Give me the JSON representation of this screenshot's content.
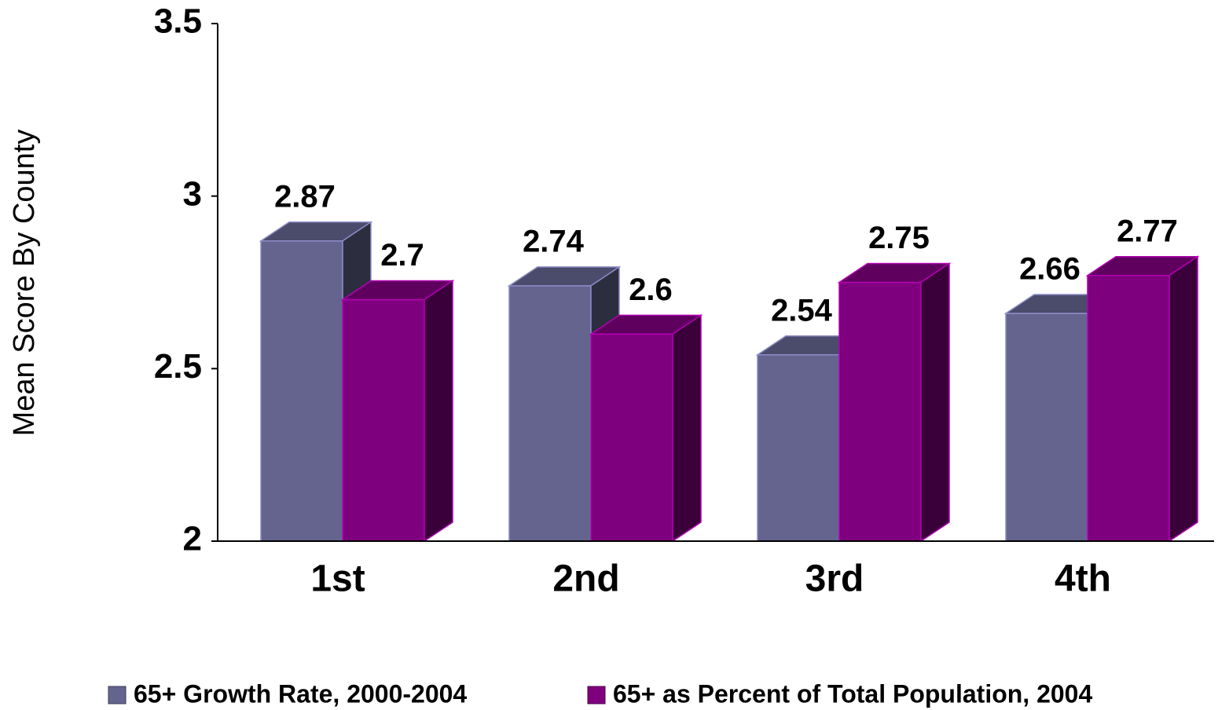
{
  "chart_data": {
    "type": "bar3d",
    "y_label": "Mean Score By County",
    "categories": [
      "1st",
      "2nd",
      "3rd",
      "4th"
    ],
    "series": [
      {
        "name": "65+ Growth Rate, 2000-2004",
        "color": "#64648f",
        "values": [
          2.87,
          2.74,
          2.54,
          2.66
        ]
      },
      {
        "name": "65+ as Percent of Total Population, 2004",
        "color": "#7f007f",
        "values": [
          2.7,
          2.6,
          2.75,
          2.77
        ]
      }
    ],
    "ylim": [
      2,
      3.5
    ],
    "yticks": [
      2,
      2.5,
      3,
      3.5
    ],
    "grid": false,
    "legend": "bottom"
  }
}
